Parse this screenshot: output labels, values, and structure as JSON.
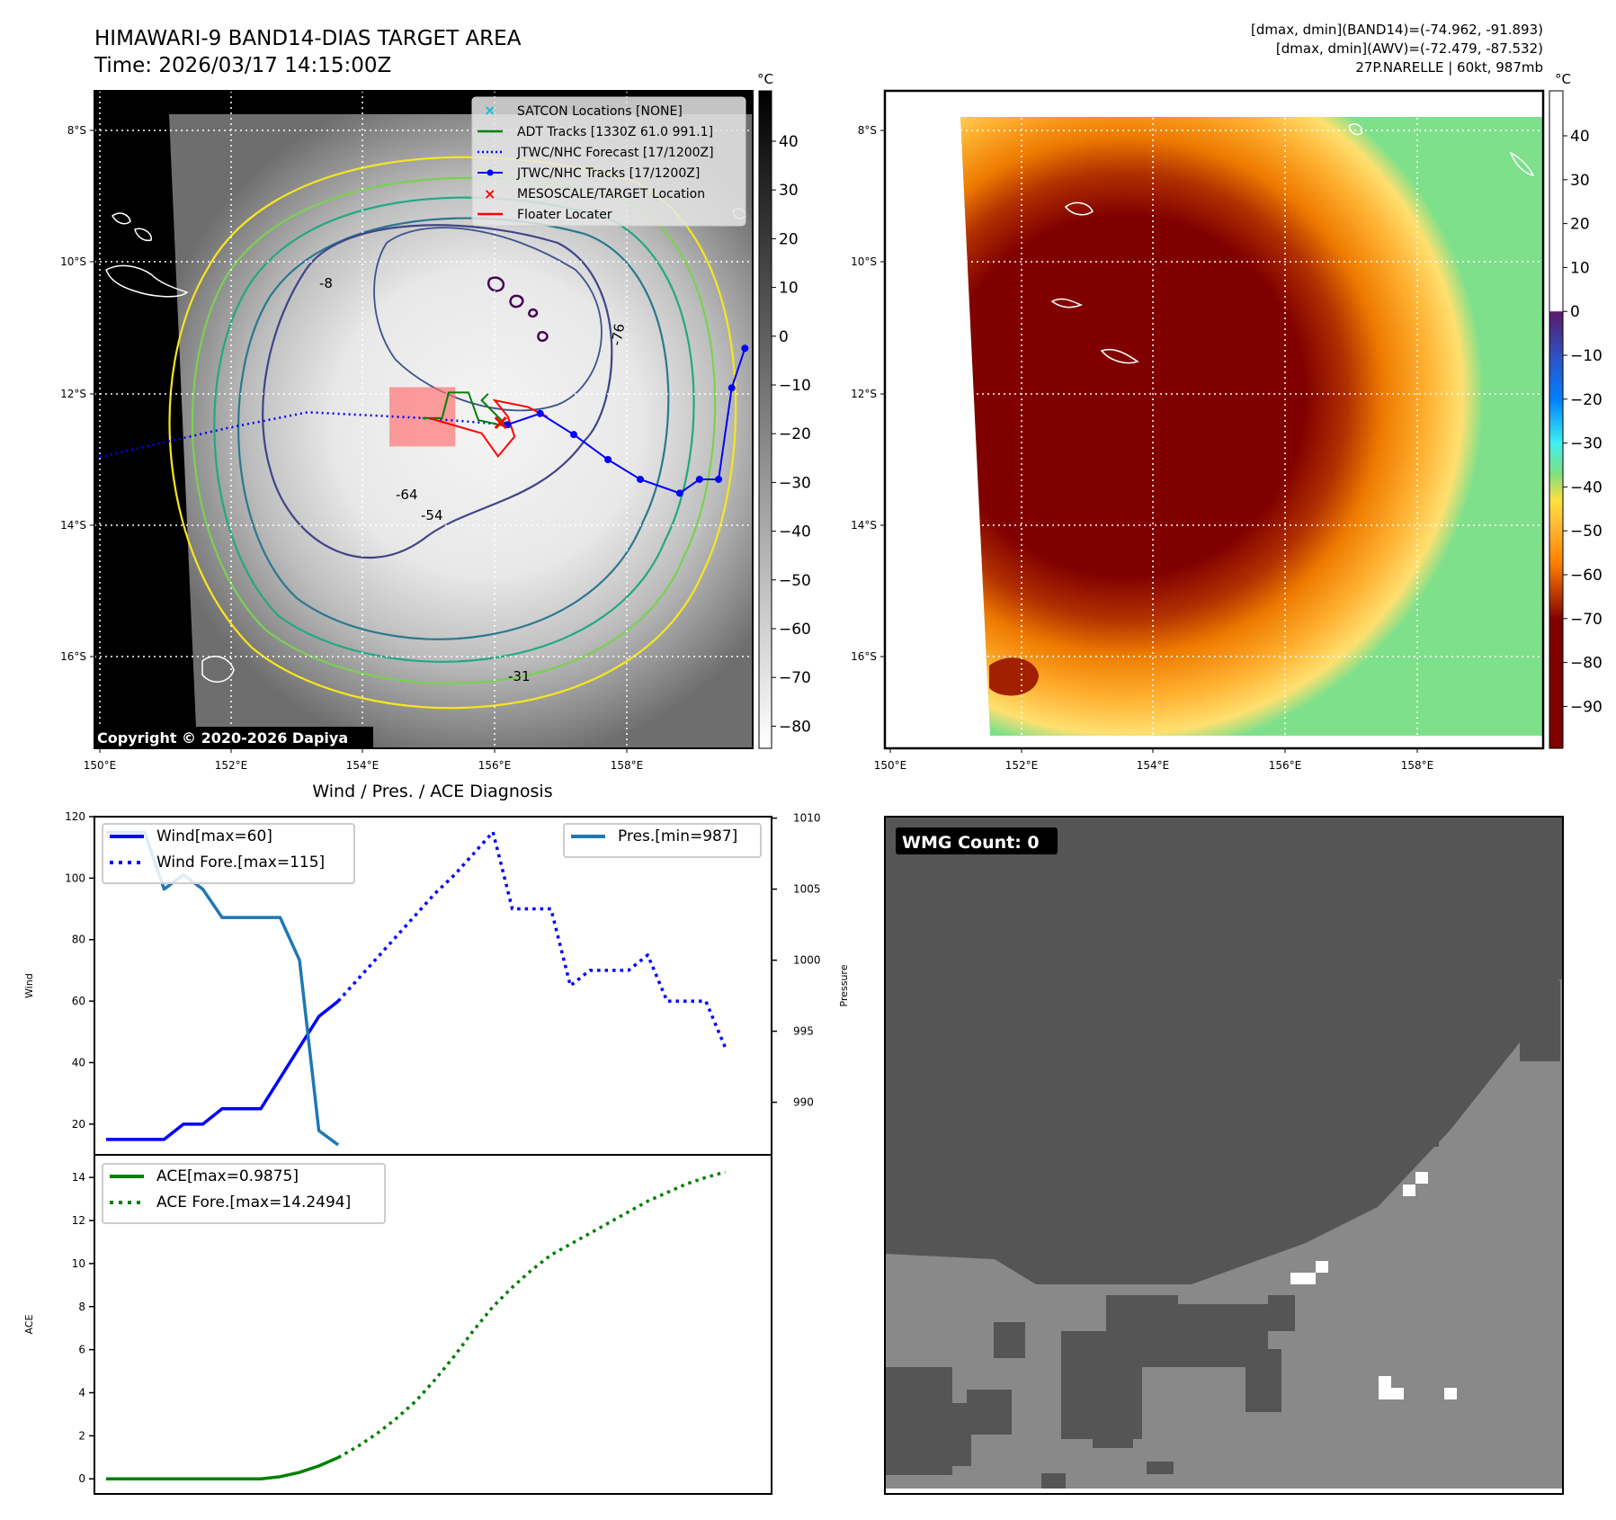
{
  "header": {
    "title": "HIMAWARI-9 BAND14-DIAS TARGET AREA",
    "time": "Time: 2026/03/17 14:15:00Z"
  },
  "info": {
    "band14": "[dmax, dmin](BAND14)=(-74.962, -91.893)",
    "awv": "[dmax, dmin](AWV)=(-72.479, -87.532)",
    "storm": "27P.NARELLE | 60kt, 987mb"
  },
  "maps": {
    "lat_labels": [
      "8°S",
      "10°S",
      "12°S",
      "14°S",
      "16°S"
    ],
    "lon_labels": [
      "150°E",
      "152°E",
      "154°E",
      "156°E",
      "158°E"
    ],
    "unit": "°C",
    "copyright": "Copyright © 2020-2026 Dapiya",
    "colorbar_left_ticks": [
      "40",
      "30",
      "20",
      "10",
      "0",
      "−10",
      "−20",
      "−30",
      "−40",
      "−50",
      "−60",
      "−70",
      "−80"
    ],
    "colorbar_right_ticks": [
      "40",
      "30",
      "20",
      "10",
      "0",
      "−10",
      "−20",
      "−30",
      "−40",
      "−50",
      "−60",
      "−70",
      "−80",
      "−90"
    ],
    "contour_labels": [
      "-76",
      "-54",
      "-64",
      "-31",
      "-8"
    ],
    "legend": [
      {
        "label": "SATCON Locations [NONE]",
        "color": "#17becf"
      },
      {
        "label": "ADT Tracks [1330Z 61.0 991.1]",
        "color": "#008000"
      },
      {
        "label": "JTWC/NHC Forecast [17/1200Z]",
        "color": "#0000ff"
      },
      {
        "label": "JTWC/NHC Tracks [17/1200Z]",
        "color": "#0000ff"
      },
      {
        "label": "MESOSCALE/TARGET Location",
        "color": "#ff0000"
      },
      {
        "label": "Floater Locater",
        "color": "#ff0000"
      }
    ],
    "jtwc_track": [
      [
        156.19,
        12.47
      ],
      [
        156.69,
        12.3
      ],
      [
        157.2,
        12.62
      ],
      [
        157.72,
        13.0
      ],
      [
        158.21,
        13.3
      ],
      [
        158.81,
        13.51
      ],
      [
        159.11,
        13.3
      ],
      [
        159.4,
        13.3
      ],
      [
        159.6,
        11.91
      ],
      [
        159.8,
        11.31
      ]
    ],
    "jtwc_forecast": [
      [
        150.0,
        12.96
      ],
      [
        151.94,
        12.52
      ],
      [
        153.16,
        12.28
      ],
      [
        154.93,
        12.37
      ],
      [
        156.19,
        12.47
      ]
    ],
    "adt_track": [
      [
        154.9,
        12.37
      ],
      [
        155.2,
        12.37
      ],
      [
        155.3,
        11.98
      ],
      [
        155.6,
        11.98
      ],
      [
        155.75,
        12.4
      ],
      [
        156.2,
        12.5
      ],
      [
        155.8,
        12.1
      ],
      [
        155.9,
        12.0
      ]
    ],
    "floater": [
      [
        155.0,
        12.37
      ],
      [
        155.8,
        12.6
      ],
      [
        156.05,
        12.95
      ],
      [
        156.3,
        12.65
      ],
      [
        156.2,
        12.35
      ],
      [
        156.0,
        12.1
      ],
      [
        156.5,
        12.2
      ],
      [
        156.8,
        12.35
      ]
    ],
    "target": [
      156.09,
      12.44
    ],
    "target_box": [
      154.4,
      11.9,
      155.4,
      12.8
    ]
  },
  "wmg": {
    "label": "WMG Count: 0"
  },
  "chart_data": [
    {
      "type": "line",
      "title": "Wind / Pres. / ACE Diagnosis",
      "ylabel": "Wind",
      "y2label": "Pressure",
      "ylim": [
        10,
        120
      ],
      "y2lim": [
        986.3,
        1010.1
      ],
      "yticks": [
        20,
        40,
        60,
        80,
        100,
        120
      ],
      "y2ticks": [
        990,
        995,
        1000,
        1005,
        1010
      ],
      "xlim": [
        -0.6,
        34.4
      ],
      "series": [
        {
          "name": "Wind[max=60]",
          "style": "solid",
          "color": "#0000ff",
          "axis": "left",
          "x": [
            0,
            1,
            2,
            3,
            4,
            5,
            6,
            7,
            8,
            9,
            10,
            11,
            12
          ],
          "values": [
            15,
            15,
            15,
            15,
            20,
            20,
            25,
            25,
            25,
            35,
            45,
            55,
            60
          ]
        },
        {
          "name": "Wind Fore.[max=115]",
          "style": "dotted",
          "color": "#0000ff",
          "axis": "left",
          "x": [
            12,
            13,
            14,
            15,
            16,
            17,
            18,
            19,
            20,
            21,
            22,
            23,
            24,
            25,
            26,
            27,
            28,
            29,
            30,
            31,
            32
          ],
          "values": [
            60,
            67,
            74,
            81,
            88,
            95,
            101,
            108,
            115,
            90,
            90,
            90,
            65,
            70,
            70,
            70,
            75,
            60,
            60,
            60,
            45
          ]
        },
        {
          "name": "Pres.[min=987]",
          "style": "solid",
          "color": "#1f77b4",
          "axis": "right",
          "x": [
            0,
            1,
            2,
            3,
            4,
            5,
            6,
            7,
            8,
            9,
            10,
            11,
            12
          ],
          "values": [
            1009,
            1009,
            1009,
            1005,
            1006,
            1005,
            1003,
            1003,
            1003,
            1003,
            1000,
            988,
            987
          ]
        }
      ]
    },
    {
      "type": "line",
      "ylabel": "ACE",
      "ylim": [
        -0.7,
        15.05
      ],
      "yticks": [
        0,
        2,
        4,
        6,
        8,
        10,
        12,
        14
      ],
      "xlim": [
        -0.6,
        34.4
      ],
      "series": [
        {
          "name": "ACE[max=0.9875]",
          "style": "solid",
          "color": "#008000",
          "x": [
            0,
            1,
            2,
            3,
            4,
            5,
            6,
            7,
            8,
            9,
            10,
            11,
            12
          ],
          "values": [
            0,
            0,
            0,
            0,
            0,
            0,
            0,
            0,
            0,
            0.1,
            0.3,
            0.6,
            0.99
          ]
        },
        {
          "name": "ACE Fore.[max=14.2494]",
          "style": "dotted",
          "color": "#008000",
          "x": [
            12,
            13,
            14,
            15,
            16,
            17,
            18,
            19,
            20,
            21,
            22,
            23,
            24,
            25,
            26,
            27,
            28,
            29,
            30,
            31,
            32
          ],
          "values": [
            0.99,
            1.5,
            2.1,
            2.8,
            3.6,
            4.6,
            5.7,
            6.9,
            8.0,
            8.9,
            9.7,
            10.4,
            10.9,
            11.4,
            11.9,
            12.4,
            12.9,
            13.3,
            13.7,
            14.0,
            14.25
          ]
        }
      ]
    }
  ]
}
